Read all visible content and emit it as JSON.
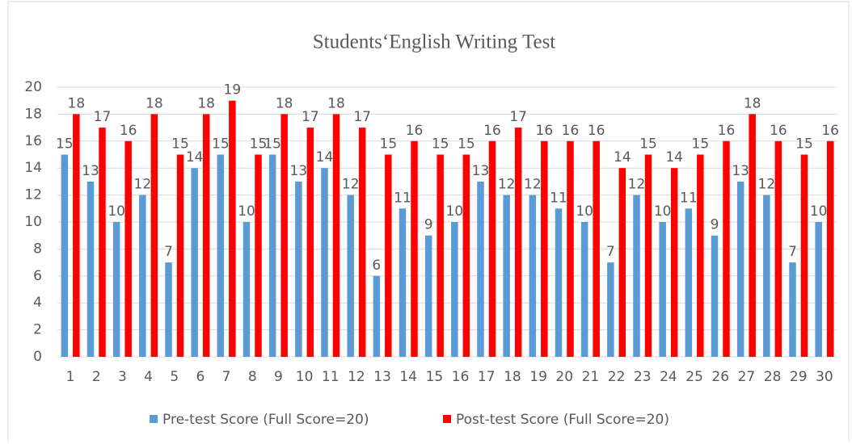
{
  "chart_data": {
    "type": "bar",
    "title": "Students‘English Writing Test",
    "categories": [
      "1",
      "2",
      "3",
      "4",
      "5",
      "6",
      "7",
      "8",
      "9",
      "10",
      "11",
      "12",
      "13",
      "14",
      "15",
      "16",
      "17",
      "18",
      "19",
      "20",
      "21",
      "22",
      "23",
      "24",
      "25",
      "26",
      "27",
      "28",
      "29",
      "30"
    ],
    "series": [
      {
        "name": "Pre-test Score (Full Score=20)",
        "color": "#5b9bd5",
        "values": [
          15,
          13,
          10,
          12,
          7,
          14,
          15,
          10,
          15,
          13,
          14,
          12,
          6,
          11,
          9,
          10,
          13,
          12,
          12,
          11,
          10,
          7,
          12,
          10,
          11,
          9,
          13,
          12,
          7,
          10
        ]
      },
      {
        "name": "Post-test Score (Full Score=20)",
        "color": "#ff0000",
        "values": [
          18,
          17,
          16,
          18,
          15,
          18,
          19,
          15,
          18,
          17,
          18,
          17,
          15,
          16,
          15,
          15,
          16,
          17,
          16,
          16,
          16,
          14,
          15,
          14,
          15,
          16,
          18,
          16,
          15,
          16
        ]
      }
    ],
    "ylim": [
      0,
      20
    ],
    "yticks": [
      0,
      2,
      4,
      6,
      8,
      10,
      12,
      14,
      16,
      18,
      20
    ],
    "grid": true,
    "legend": "bottom"
  }
}
